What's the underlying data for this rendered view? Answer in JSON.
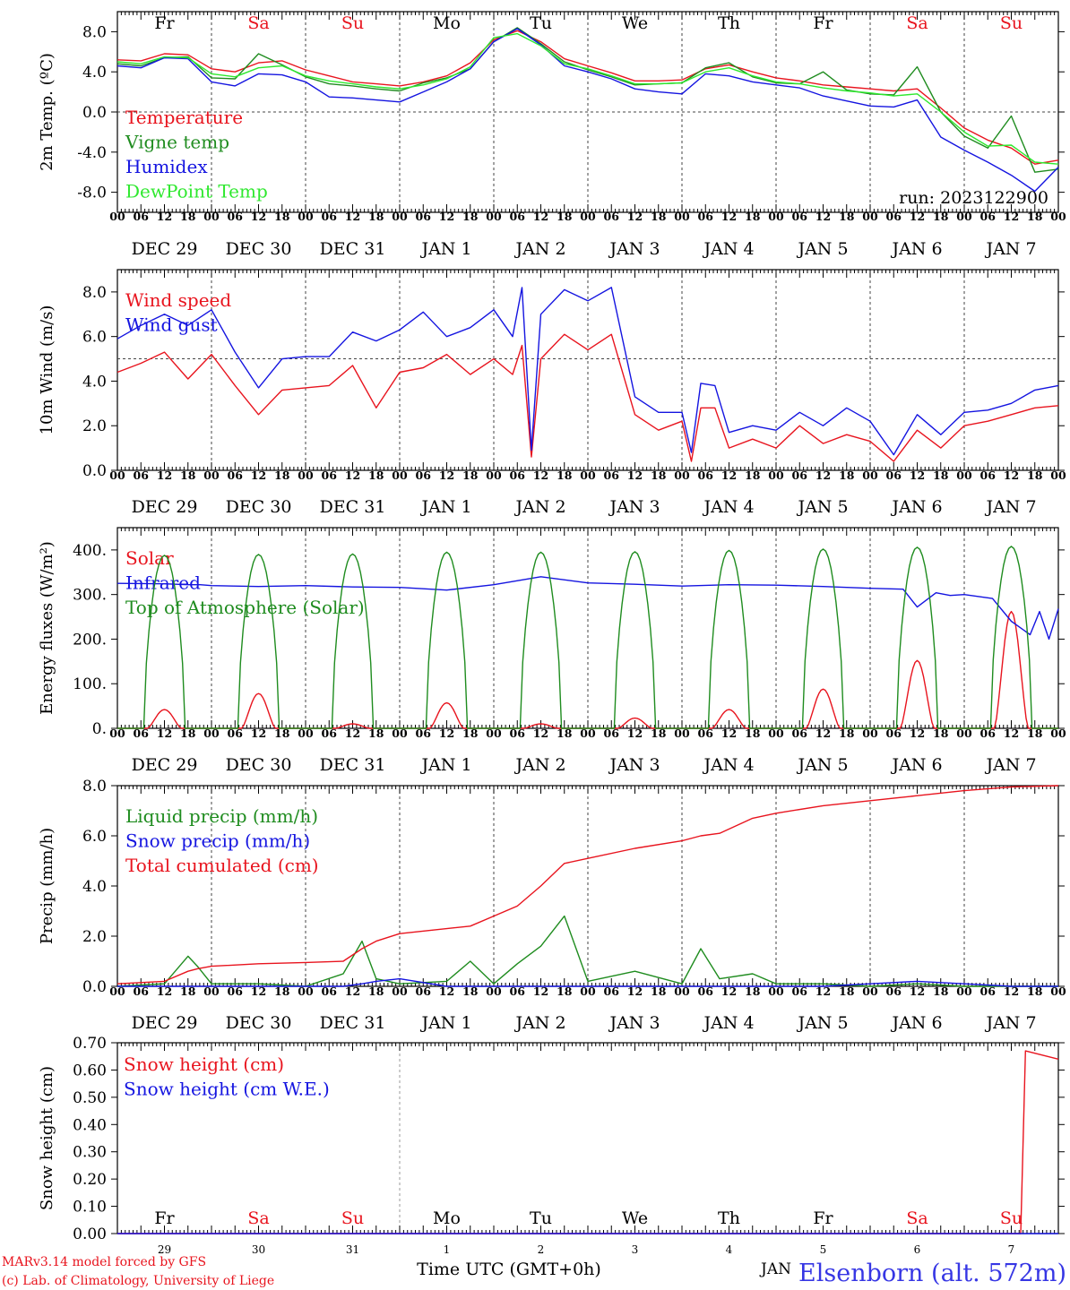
{
  "colors": {
    "red": "#e8141e",
    "green": "#1f8c1f",
    "blue": "#1414e0",
    "lime": "#2ee82e",
    "dark": "#000000"
  },
  "x_axis": {
    "hour_ticks": [
      "00",
      "06",
      "12",
      "18"
    ],
    "final_tick": "00",
    "dates": [
      "DEC 29",
      "DEC 30",
      "DEC 31",
      "JAN  1",
      "JAN  2",
      "JAN  3",
      "JAN  4",
      "JAN  5",
      "JAN  6",
      "JAN  7"
    ],
    "weekdays": [
      "Fr",
      "Sa",
      "Su",
      "Mo",
      "Tu",
      "We",
      "Th",
      "Fr",
      "Sa",
      "Su"
    ],
    "weekend_flags": [
      false,
      true,
      true,
      false,
      false,
      false,
      false,
      false,
      true,
      true
    ],
    "day_numbers": [
      "29",
      "30",
      "31",
      "1",
      "2",
      "3",
      "4",
      "5",
      "6",
      "7"
    ],
    "month_label": "JAN",
    "xlabel": "Time UTC (GMT+0h)"
  },
  "run_label": "run: 2023122900",
  "credits": {
    "line1": "MARv3.14 model forced by GFS",
    "line2": "(c) Lab. of Climatology, University of Liege"
  },
  "station": "Elsenborn (alt. 572m)",
  "chart_data": [
    {
      "id": "temp",
      "type": "line",
      "ylabel": "2m Temp. (ºC)",
      "ylim": [
        -10,
        10
      ],
      "ticks": [
        8,
        4,
        0,
        -4,
        -8
      ],
      "tick_labels": [
        "8.0",
        "4.0",
        "0.0",
        "-4.0",
        "-8.0"
      ],
      "ref_line": 0,
      "x_days": [
        0,
        0.25,
        0.5,
        0.75,
        1,
        1.25,
        1.5,
        1.75,
        2,
        2.25,
        2.5,
        2.75,
        3,
        3.25,
        3.5,
        3.75,
        4,
        4.25,
        4.5,
        4.75,
        5,
        5.25,
        5.5,
        5.75,
        6,
        6.25,
        6.5,
        6.75,
        7,
        7.25,
        7.5,
        7.75,
        8,
        8.25,
        8.5,
        8.75,
        9,
        9.25,
        9.5,
        9.75,
        10
      ],
      "series": [
        {
          "name": "Temperature",
          "color": "red",
          "values": [
            5.2,
            5.1,
            5.8,
            5.7,
            4.3,
            4.0,
            4.9,
            5.1,
            4.2,
            3.6,
            3.0,
            2.8,
            2.6,
            3.0,
            3.6,
            4.9,
            7.2,
            8.1,
            7.0,
            5.3,
            4.6,
            3.9,
            3.1,
            3.1,
            3.2,
            4.3,
            4.7,
            4.0,
            3.4,
            3.1,
            2.7,
            2.5,
            2.3,
            2.1,
            2.3,
            0.4,
            -1.6,
            -2.8,
            -3.6,
            -5.2,
            -4.8
          ]
        },
        {
          "name": "Vigne temp",
          "color": "green",
          "values": [
            4.8,
            4.6,
            5.4,
            5.5,
            3.4,
            3.3,
            5.8,
            4.7,
            3.5,
            2.8,
            2.6,
            2.3,
            2.1,
            2.9,
            3.4,
            4.3,
            7.0,
            8.4,
            6.8,
            5.0,
            4.2,
            3.5,
            2.7,
            2.8,
            2.9,
            4.4,
            4.9,
            3.5,
            2.9,
            2.8,
            4.0,
            2.2,
            1.8,
            1.7,
            4.5,
            0.0,
            -2.4,
            -3.6,
            -0.4,
            -6.0,
            -5.7
          ]
        },
        {
          "name": "Humidex",
          "color": "blue",
          "values": [
            4.6,
            4.4,
            5.4,
            5.3,
            3.0,
            2.6,
            3.8,
            3.7,
            3.0,
            1.5,
            1.4,
            1.2,
            1.0,
            2.0,
            3.0,
            4.3,
            7.0,
            8.3,
            6.7,
            4.6,
            4.0,
            3.3,
            2.3,
            2.0,
            1.8,
            3.8,
            3.6,
            3.0,
            2.7,
            2.4,
            1.6,
            1.1,
            0.6,
            0.5,
            1.2,
            -2.5,
            -3.8,
            -5.0,
            -6.3,
            -7.9,
            -5.5
          ]
        },
        {
          "name": "DewPoint Temp",
          "color": "lime",
          "values": [
            5.0,
            4.8,
            5.5,
            5.4,
            3.8,
            3.5,
            4.4,
            4.6,
            3.6,
            3.1,
            2.8,
            2.5,
            2.3,
            2.7,
            3.3,
            4.5,
            7.4,
            7.8,
            6.6,
            4.8,
            4.3,
            3.6,
            2.8,
            2.8,
            2.9,
            4.0,
            4.4,
            3.6,
            3.0,
            2.8,
            2.4,
            2.1,
            1.9,
            1.6,
            1.8,
            0.0,
            -2.0,
            -3.4,
            -3.3,
            -5.0,
            -5.2
          ]
        }
      ]
    },
    {
      "id": "wind",
      "type": "line",
      "ylabel": "10m Wind (m/s)",
      "ylim": [
        0,
        9
      ],
      "ticks": [
        8,
        6,
        4,
        2,
        0
      ],
      "tick_labels": [
        "8.0",
        "6.0",
        "4.0",
        "2.0",
        "0.0"
      ],
      "ref_line": 5,
      "x_days": [
        0,
        0.25,
        0.5,
        0.75,
        1,
        1.25,
        1.5,
        1.75,
        2,
        2.25,
        2.5,
        2.75,
        3,
        3.25,
        3.5,
        3.75,
        4,
        4.2,
        4.3,
        4.4,
        4.5,
        4.75,
        5,
        5.25,
        5.5,
        5.75,
        6,
        6.1,
        6.2,
        6.35,
        6.5,
        6.75,
        7,
        7.25,
        7.5,
        7.75,
        8,
        8.25,
        8.5,
        8.75,
        9,
        9.25,
        9.5,
        9.75,
        10
      ],
      "series": [
        {
          "name": "Wind speed",
          "color": "red",
          "values": [
            4.4,
            4.8,
            5.3,
            4.1,
            5.2,
            3.8,
            2.5,
            3.6,
            3.7,
            3.8,
            4.7,
            2.8,
            4.4,
            4.6,
            5.2,
            4.3,
            5.0,
            4.3,
            5.6,
            0.6,
            5.0,
            6.1,
            5.4,
            6.1,
            2.5,
            1.8,
            2.2,
            0.4,
            2.8,
            2.8,
            1.0,
            1.4,
            1.0,
            2.0,
            1.2,
            1.6,
            1.3,
            0.4,
            1.8,
            1.0,
            2.0,
            2.2,
            2.5,
            2.8,
            2.9
          ]
        },
        {
          "name": "Wind gust",
          "color": "blue",
          "values": [
            5.9,
            6.5,
            7.0,
            6.5,
            7.2,
            5.3,
            3.7,
            5.0,
            5.1,
            5.1,
            6.2,
            5.8,
            6.3,
            7.1,
            6.0,
            6.4,
            7.2,
            6.0,
            8.2,
            0.9,
            7.0,
            8.1,
            7.6,
            8.2,
            3.3,
            2.6,
            2.6,
            0.8,
            3.9,
            3.8,
            1.7,
            2.0,
            1.8,
            2.6,
            2.0,
            2.8,
            2.2,
            0.7,
            2.5,
            1.6,
            2.6,
            2.7,
            3.0,
            3.6,
            3.8
          ]
        }
      ]
    },
    {
      "id": "energy",
      "type": "line",
      "ylabel": "Energy fluxes (W/m²)",
      "ylim": [
        0,
        450
      ],
      "ticks": [
        400,
        300,
        200,
        100,
        0
      ],
      "tick_labels": [
        "400.",
        "300.",
        "200.",
        "100.",
        "0."
      ],
      "ref_line": null,
      "series": [
        {
          "name": "Solar",
          "color": "red",
          "peaks": [
            42,
            78,
            10,
            57,
            10,
            23,
            42,
            88,
            152,
            262
          ]
        },
        {
          "name": "Infrared",
          "color": "blue",
          "x_days": [
            0,
            0.5,
            0.75,
            0.88,
            1,
            1.5,
            2,
            2.5,
            3,
            3.5,
            4,
            4.5,
            5,
            5.5,
            6,
            6.5,
            7,
            7.5,
            8,
            8.35,
            8.5,
            8.7,
            8.85,
            9,
            9.3,
            9.5,
            9.7,
            9.8,
            9.9,
            10
          ],
          "values": [
            325,
            324,
            322,
            322,
            320,
            318,
            320,
            317,
            316,
            310,
            322,
            340,
            326,
            323,
            319,
            322,
            321,
            318,
            314,
            312,
            272,
            304,
            298,
            300,
            291,
            240,
            210,
            262,
            200,
            268
          ]
        },
        {
          "name": "Top of Atmosphere (Solar)",
          "color": "green",
          "peaks": [
            388,
            390,
            391,
            395,
            395,
            396,
            399,
            402,
            406,
            408
          ]
        }
      ]
    },
    {
      "id": "precip",
      "type": "line",
      "ylabel": "Precip (mm/h)",
      "ylim": [
        0,
        8
      ],
      "ticks": [
        8,
        6,
        4,
        2,
        0
      ],
      "tick_labels": [
        "8.0",
        "6.0",
        "4.0",
        "2.0",
        "0.0"
      ],
      "ref_line": null,
      "x_days": [
        0,
        0.5,
        0.75,
        0.85,
        1,
        1.5,
        2,
        2.4,
        2.6,
        2.75,
        3,
        3.5,
        3.75,
        4,
        4.25,
        4.5,
        4.75,
        5,
        5.5,
        6,
        6.2,
        6.4,
        6.75,
        7,
        7.5,
        8,
        8.5,
        9,
        9.5,
        10
      ],
      "series": [
        {
          "name": "Liquid precip (mm/h)",
          "color": "green",
          "values": [
            0.0,
            0.1,
            1.2,
            0.8,
            0.1,
            0.1,
            0.0,
            0.5,
            1.8,
            0.3,
            0.1,
            0.2,
            1.0,
            0.1,
            0.9,
            1.6,
            2.8,
            0.2,
            0.6,
            0.1,
            1.5,
            0.3,
            0.5,
            0.1,
            0.1,
            0.0,
            0.1,
            0.0,
            0.0,
            0.0
          ]
        },
        {
          "name": "Snow precip (mm/h)",
          "color": "blue",
          "values": [
            0.0,
            0.0,
            0.0,
            0.0,
            0.0,
            0.0,
            0.0,
            0.0,
            0.1,
            0.2,
            0.3,
            0.0,
            0.0,
            0.0,
            0.0,
            0.0,
            0.0,
            0.0,
            0.0,
            0.0,
            0.0,
            0.0,
            0.0,
            0.0,
            0.0,
            0.1,
            0.2,
            0.1,
            0.0,
            0.0
          ]
        },
        {
          "name": "Total cumulated (cm)",
          "color": "red",
          "values": [
            0.1,
            0.2,
            0.6,
            0.7,
            0.8,
            0.9,
            0.95,
            1.0,
            1.5,
            1.8,
            2.1,
            2.3,
            2.4,
            2.8,
            3.2,
            4.0,
            4.9,
            5.1,
            5.5,
            5.8,
            6.0,
            6.1,
            6.7,
            6.9,
            7.2,
            7.4,
            7.6,
            7.8,
            7.95,
            8.0
          ]
        }
      ]
    },
    {
      "id": "snow",
      "type": "line",
      "ylabel": "Snow height (cm)",
      "ylim": [
        0,
        0.7
      ],
      "ticks": [
        0.7,
        0.6,
        0.5,
        0.4,
        0.3,
        0.2,
        0.1,
        0
      ],
      "tick_labels": [
        "0.70",
        "0.60",
        "0.50",
        "0.40",
        "0.30",
        "0.20",
        "0.10",
        "0.00"
      ],
      "ref_line": null,
      "x_days": [
        0,
        9.6,
        9.65,
        10
      ],
      "series": [
        {
          "name": "Snow height (cm)",
          "color": "red",
          "values": [
            0,
            0,
            0.67,
            0.64
          ]
        },
        {
          "name": "Snow height (cm W.E.)",
          "color": "blue",
          "values": [
            0,
            0,
            0,
            0
          ]
        }
      ]
    }
  ]
}
